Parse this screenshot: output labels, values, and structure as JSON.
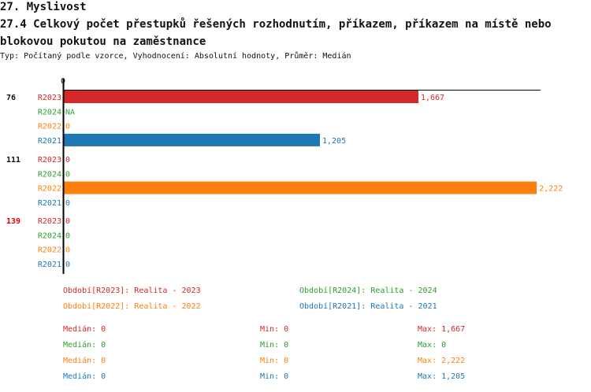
{
  "header": {
    "title": "27. Myslivost",
    "subtitle": "27.4 Celkový počet přestupků řešených rozhodnutím, příkazem, příkazem na místě nebo blokovou pokutou na zaměstnance",
    "info": "Typ: Počítaný podle vzorce, Vyhodnocení: Absolutní hodnoty, Průměr: Medián"
  },
  "colors": {
    "R2023": "#d62728",
    "R2024": "#2ca02c",
    "R2022": "#ff7f0e",
    "R2021": "#1f77b4"
  },
  "chart_data": {
    "type": "bar",
    "orientation": "horizontal",
    "xlim": [
      0,
      2240
    ],
    "x_tick_labels": [
      "0"
    ],
    "groups": [
      {
        "label": "76",
        "label_color": "#111111",
        "bars": [
          {
            "series": "R2023",
            "value": 1667,
            "text": "1,667"
          },
          {
            "series": "R2024",
            "value": null,
            "text": "NA"
          },
          {
            "series": "R2022",
            "value": 0,
            "text": "0"
          },
          {
            "series": "R2021",
            "value": 1205,
            "text": "1,205"
          }
        ]
      },
      {
        "label": "111",
        "label_color": "#111111",
        "bars": [
          {
            "series": "R2023",
            "value": 0,
            "text": "0"
          },
          {
            "series": "R2024",
            "value": 0,
            "text": "0"
          },
          {
            "series": "R2022",
            "value": 2222,
            "text": "2,222"
          },
          {
            "series": "R2021",
            "value": 0,
            "text": "0"
          }
        ]
      },
      {
        "label": "139",
        "label_color": "#e00000",
        "bars": [
          {
            "series": "R2023",
            "value": 0,
            "text": "0"
          },
          {
            "series": "R2024",
            "value": 0,
            "text": "0"
          },
          {
            "series": "R2022",
            "value": 0,
            "text": "0"
          },
          {
            "series": "R2021",
            "value": 0,
            "text": "0"
          }
        ]
      }
    ]
  },
  "legend": [
    {
      "series": "R2023",
      "text": "Období[R2023]: Realita - 2023"
    },
    {
      "series": "R2024",
      "text": "Období[R2024]: Realita - 2024"
    },
    {
      "series": "R2022",
      "text": "Období[R2022]: Realita - 2022"
    },
    {
      "series": "R2021",
      "text": "Období[R2021]: Realita - 2021"
    }
  ],
  "stats": [
    {
      "series": "R2023",
      "median": "Medián: 0",
      "min": "Min: 0",
      "max": "Max: 1,667"
    },
    {
      "series": "R2024",
      "median": "Medián: 0",
      "min": "Min: 0",
      "max": "Max: 0"
    },
    {
      "series": "R2022",
      "median": "Medián: 0",
      "min": "Min: 0",
      "max": "Max: 2,222"
    },
    {
      "series": "R2021",
      "median": "Medián: 0",
      "min": "Min: 0",
      "max": "Max: 1,205"
    }
  ]
}
